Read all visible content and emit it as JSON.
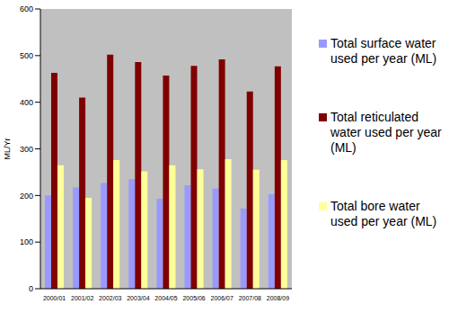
{
  "chart_data": {
    "type": "bar",
    "y_label": "ML/Yr",
    "categories": [
      "2000/01",
      "2001/02",
      "2002/03",
      "2003/04",
      "2004/05",
      "2005/06",
      "2006/07",
      "2007/08",
      "2008/09"
    ],
    "series": [
      {
        "name": "Total surface water used per year (ML)",
        "color": "#9999ff",
        "values": [
          200,
          217,
          227,
          235,
          193,
          222,
          215,
          172,
          203
        ]
      },
      {
        "name": "Total reticulated water used per year (ML)",
        "color": "#800000",
        "values": [
          463,
          410,
          502,
          486,
          457,
          478,
          492,
          423,
          477
        ]
      },
      {
        "name": "Total bore water used per year (ML)",
        "color": "#ffff99",
        "values": [
          265,
          195,
          276,
          252,
          265,
          256,
          278,
          255,
          276
        ]
      }
    ],
    "ylim": [
      0,
      600
    ],
    "yticks": [
      0,
      100,
      200,
      300,
      400,
      500,
      600
    ],
    "grid": false,
    "legend": "right"
  }
}
